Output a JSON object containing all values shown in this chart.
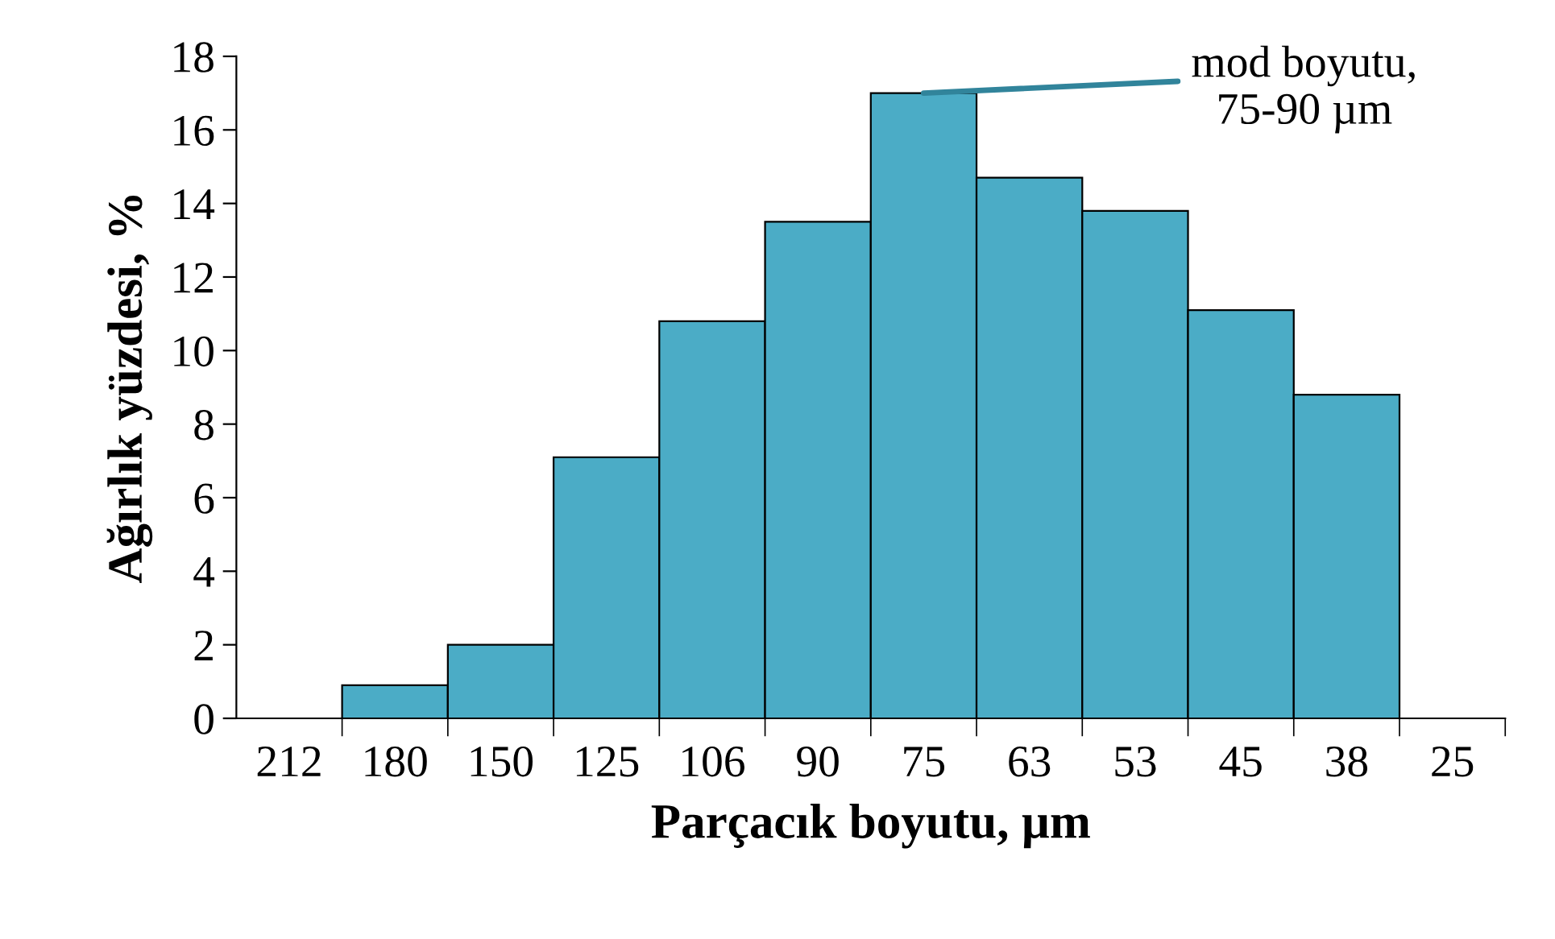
{
  "chart_data": {
    "type": "bar",
    "xlabel": "Parçacık boyutu, µm",
    "ylabel": "Ağırlık yüzdesi, %",
    "categories": [
      "212",
      "180",
      "150",
      "125",
      "106",
      "90",
      "75",
      "63",
      "53",
      "45",
      "38",
      "25"
    ],
    "values": [
      null,
      0.9,
      2.0,
      7.1,
      10.8,
      13.5,
      17.0,
      14.7,
      13.8,
      11.1,
      8.8,
      null
    ],
    "color": "#4bacc6",
    "ylim": [
      0,
      18
    ],
    "yticks": [
      0,
      2,
      4,
      6,
      8,
      10,
      12,
      14,
      16,
      18
    ],
    "grid": false,
    "legend": false,
    "annotations": [
      {
        "text": "mod boyutu,\n75-90 µm",
        "x": "75",
        "y": 17.0
      }
    ]
  }
}
